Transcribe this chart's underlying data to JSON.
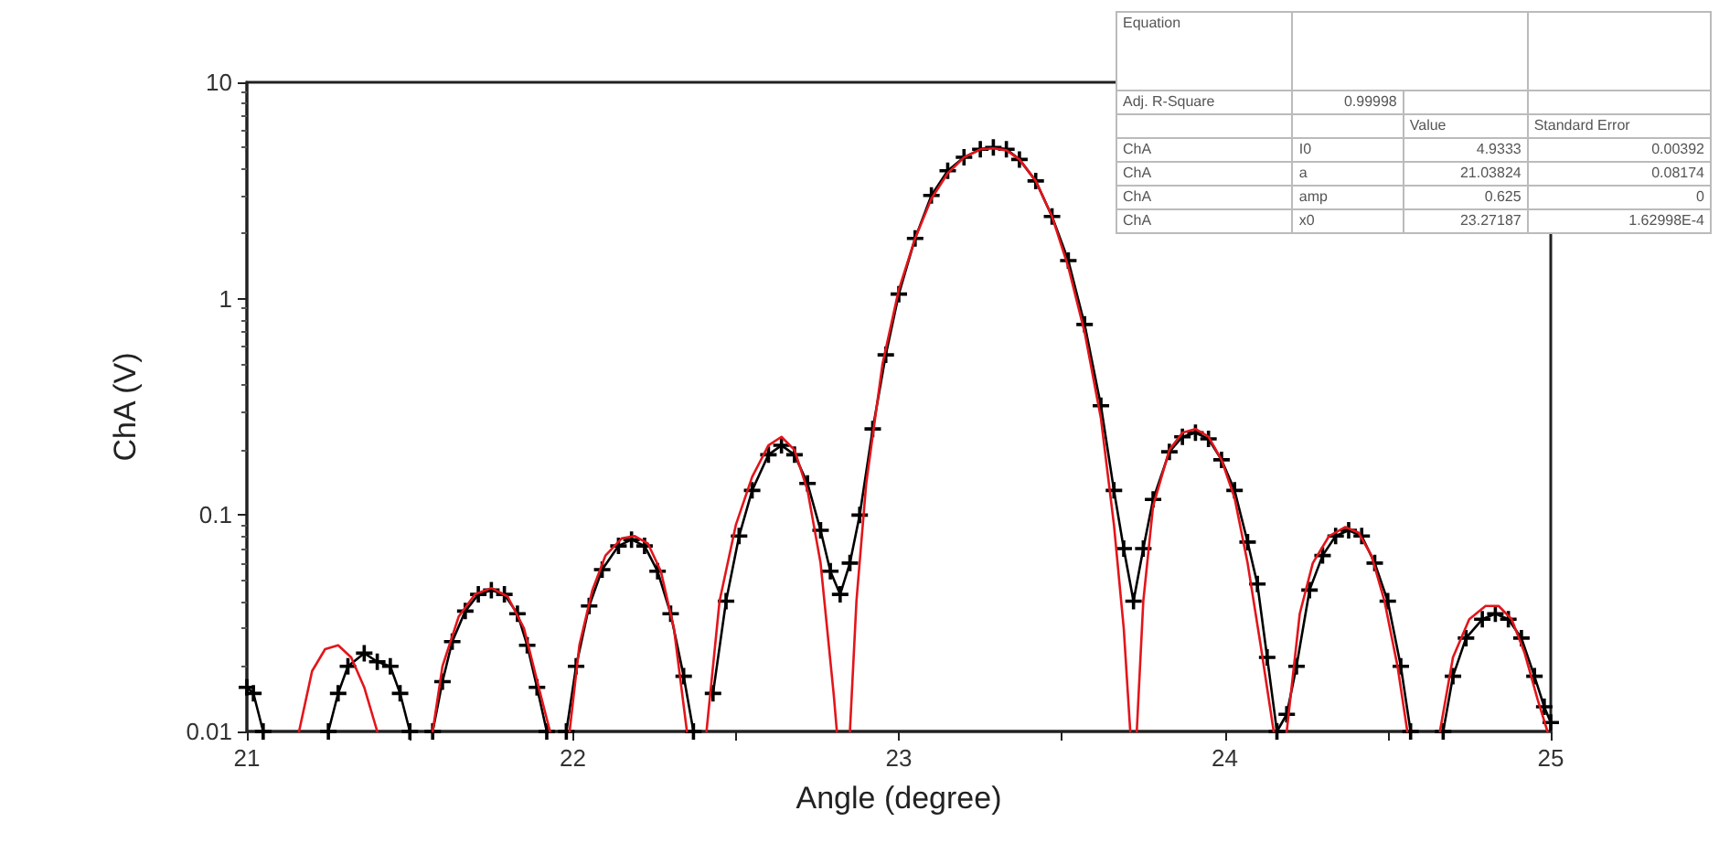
{
  "chart_data": {
    "type": "line",
    "xlabel": "Angle (degree)",
    "ylabel": "ChA (V)",
    "log": "y",
    "grid": false,
    "xlim": [
      21,
      25
    ],
    "xticks": [
      21,
      {
        "value": 21.5,
        "label": null
      },
      22,
      {
        "value": 22.5,
        "label": null
      },
      23,
      {
        "value": 23.5,
        "label": null
      },
      24,
      {
        "value": 24.5,
        "label": null
      },
      25
    ],
    "ylim": [
      0.01,
      10
    ],
    "yticks": [
      {
        "value": 0.01,
        "label": "0.01"
      },
      {
        "value": 0.1,
        "label": "0.1"
      },
      1,
      10
    ],
    "annotations": [
      "Equation",
      "Adj. R-Square",
      "0.99998",
      "Value",
      "Standard Error",
      "ChA",
      "I0",
      "4.9333",
      "0.00392",
      "ChA",
      "a",
      "21.03824",
      "0.08174",
      "ChA",
      "amp",
      "0.625",
      "0",
      "ChA",
      "x0",
      "23.27187",
      "1.62998E-4"
    ],
    "series": [
      {
        "color": "#000000",
        "marker": "cross",
        "line_style": "solid",
        "x": [
          21.0,
          21.02,
          21.05,
          21.15,
          21.25,
          21.28,
          21.31,
          21.36,
          21.4,
          21.44,
          21.47,
          21.5,
          21.53,
          21.57,
          21.6,
          21.63,
          21.67,
          21.71,
          21.75,
          21.79,
          21.83,
          21.86,
          21.89,
          21.92,
          21.95,
          21.98,
          22.01,
          22.05,
          22.09,
          22.14,
          22.18,
          22.22,
          22.26,
          22.3,
          22.34,
          22.37,
          22.4,
          22.43,
          22.47,
          22.51,
          22.55,
          22.6,
          22.64,
          22.68,
          22.72,
          22.76,
          22.79,
          22.82,
          22.85,
          22.88,
          22.92,
          22.96,
          23.0,
          23.05,
          23.1,
          23.15,
          23.2,
          23.25,
          23.29,
          23.33,
          23.37,
          23.42,
          23.47,
          23.52,
          23.57,
          23.62,
          23.66,
          23.69,
          23.72,
          23.75,
          23.78,
          23.83,
          23.87,
          23.91,
          23.95,
          23.99,
          24.03,
          24.07,
          24.1,
          24.13,
          24.16,
          24.19,
          24.22,
          24.26,
          24.3,
          24.34,
          24.38,
          24.42,
          24.46,
          24.5,
          24.54,
          24.57,
          24.62,
          24.67,
          24.7,
          24.74,
          24.79,
          24.83,
          24.87,
          24.91,
          24.95,
          24.98,
          25.0
        ],
        "values": [
          0.016,
          0.015,
          0.01,
          null,
          0.01,
          0.015,
          0.02,
          0.023,
          0.021,
          0.02,
          0.015,
          0.01,
          null,
          0.01,
          0.017,
          0.026,
          0.036,
          0.043,
          0.045,
          0.043,
          0.035,
          0.025,
          0.016,
          0.01,
          null,
          0.01,
          0.02,
          0.038,
          0.056,
          0.072,
          0.077,
          0.072,
          0.055,
          0.035,
          0.018,
          0.01,
          null,
          0.015,
          0.04,
          0.08,
          0.13,
          0.19,
          0.21,
          0.19,
          0.14,
          0.085,
          0.055,
          0.043,
          0.06,
          0.1,
          0.25,
          0.55,
          1.05,
          1.9,
          3.0,
          3.9,
          4.5,
          4.9,
          5.0,
          4.9,
          4.4,
          3.5,
          2.4,
          1.5,
          0.76,
          0.32,
          0.13,
          0.07,
          0.04,
          0.07,
          0.118,
          0.196,
          0.23,
          0.24,
          0.225,
          0.18,
          0.13,
          0.075,
          0.048,
          0.022,
          0.01,
          0.012,
          0.02,
          0.045,
          0.065,
          0.08,
          0.085,
          0.08,
          0.06,
          0.04,
          0.02,
          0.01,
          null,
          0.01,
          0.018,
          0.027,
          0.033,
          0.035,
          0.033,
          0.027,
          0.018,
          0.013,
          0.011
        ]
      },
      {
        "color": "#e3151b",
        "marker": "none",
        "line_style": "solid",
        "x": [
          21.16,
          21.2,
          21.24,
          21.28,
          21.32,
          21.36,
          21.4,
          21.5,
          21.57,
          21.6,
          21.65,
          21.7,
          21.75,
          21.8,
          21.85,
          21.9,
          21.93,
          21.96,
          21.99,
          22.02,
          22.06,
          22.1,
          22.15,
          22.19,
          22.23,
          22.27,
          22.31,
          22.35,
          22.38,
          22.41,
          22.45,
          22.5,
          22.55,
          22.6,
          22.64,
          22.68,
          22.72,
          22.76,
          22.8,
          22.81,
          22.83,
          22.85,
          22.87,
          22.9,
          22.95,
          23.0,
          23.05,
          23.1,
          23.15,
          23.2,
          23.25,
          23.29,
          23.33,
          23.37,
          23.42,
          23.47,
          23.52,
          23.57,
          23.62,
          23.66,
          23.69,
          23.71,
          23.72,
          23.73,
          23.75,
          23.78,
          23.83,
          23.87,
          23.91,
          23.95,
          23.99,
          24.03,
          24.07,
          24.11,
          24.15,
          24.17,
          24.19,
          24.23,
          24.27,
          24.32,
          24.37,
          24.41,
          24.45,
          24.49,
          24.53,
          24.56,
          24.61,
          24.66,
          24.7,
          24.75,
          24.8,
          24.84,
          24.88,
          24.92,
          24.96,
          24.99
        ],
        "values": [
          0.01,
          0.019,
          0.024,
          0.025,
          0.022,
          0.016,
          0.01,
          null,
          0.01,
          0.02,
          0.034,
          0.043,
          0.046,
          0.042,
          0.03,
          0.015,
          0.01,
          null,
          0.01,
          0.025,
          0.045,
          0.065,
          0.078,
          0.08,
          0.074,
          0.055,
          0.03,
          0.01,
          null,
          0.01,
          0.04,
          0.09,
          0.15,
          0.21,
          0.23,
          0.2,
          0.13,
          0.06,
          0.015,
          0.01,
          null,
          0.01,
          0.04,
          0.14,
          0.5,
          1.1,
          1.9,
          2.9,
          3.8,
          4.5,
          4.9,
          4.95,
          4.85,
          4.4,
          3.5,
          2.4,
          1.4,
          0.7,
          0.28,
          0.09,
          0.03,
          0.01,
          null,
          0.01,
          0.04,
          0.11,
          0.2,
          0.24,
          0.25,
          0.23,
          0.18,
          0.12,
          0.06,
          0.025,
          0.01,
          null,
          0.01,
          0.035,
          0.06,
          0.08,
          0.088,
          0.083,
          0.065,
          0.04,
          0.02,
          0.01,
          null,
          0.01,
          0.022,
          0.033,
          0.038,
          0.038,
          0.033,
          0.023,
          0.014,
          0.01
        ]
      }
    ]
  }
}
